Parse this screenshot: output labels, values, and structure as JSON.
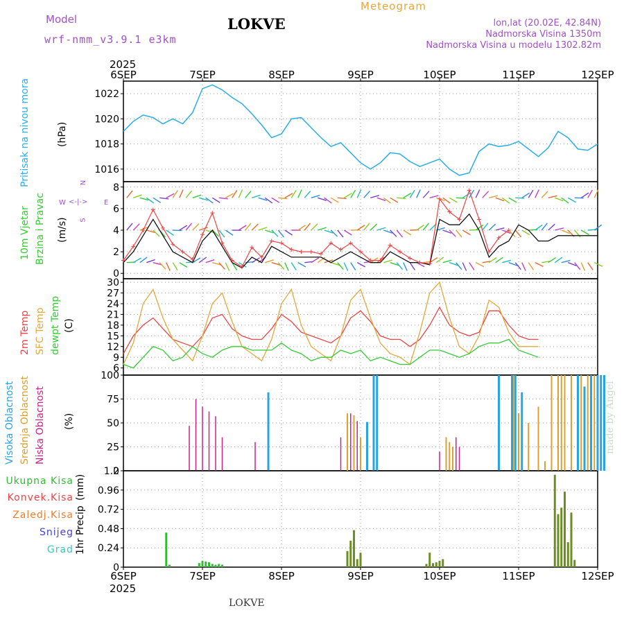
{
  "header": {
    "model_label": "Model",
    "model_name": "wrf-nmm_v3.9.1  e3km",
    "station": "LOKVE",
    "chart_title": "Meteogram",
    "lonlat": "lon,lat (20.02E, 42.84N)",
    "elevation": "Nadmorska Visina 1350m",
    "model_elevation": "Nadmorska Visina u modelu 1302.82m",
    "footer_station": "LOKVE",
    "watermark": "made by Angel",
    "year": "2025"
  },
  "colors": {
    "pressure": "#29aee8",
    "t2m": "#ee4444",
    "sfc": "#e3a83a",
    "dewpt": "#33cc33",
    "wind_obs": "#111111",
    "wind_gust": "#ee4444",
    "high_cloud": "#2ba3e0",
    "mid_cloud": "#dda030",
    "low_cloud": "#cc2288",
    "precip_total": "#33bb33",
    "precip_conv": "#ee4444",
    "snow": "#4444dd",
    "hail": "#33ccbb",
    "precip_stratiform": "#f07d2a"
  },
  "chart_data": {
    "type": "meteogram",
    "x_ticks": [
      "6SEP",
      "7SEP",
      "8SEP",
      "9SEP",
      "10SEP",
      "11SEP",
      "12SEP"
    ],
    "x_range_hours": [
      0,
      144
    ],
    "panels": [
      {
        "id": "pressure",
        "type": "line",
        "ylabels": [
          "Pritisak na nivou mora",
          "(hPa)"
        ],
        "ylim": [
          1015,
          1023
        ],
        "yticks": [
          1016,
          1018,
          1020,
          1022
        ],
        "step_hours": 3,
        "series": [
          {
            "name": "MSLP",
            "values": [
              1019.0,
              1019.8,
              1020.3,
              1020.1,
              1019.6,
              1020.0,
              1019.6,
              1020.5,
              1022.4,
              1022.7,
              1022.3,
              1021.7,
              1021.2,
              1020.4,
              1019.5,
              1018.5,
              1018.8,
              1020.0,
              1020.1,
              1019.3,
              1018.5,
              1017.8,
              1018.1,
              1017.3,
              1016.5,
              1016.0,
              1016.5,
              1017.3,
              1017.2,
              1016.6,
              1016.2,
              1016.5,
              1016.8,
              1016.0,
              1015.5,
              1015.7,
              1017.4,
              1018.0,
              1017.8,
              1017.9,
              1018.2,
              1017.6,
              1017.0,
              1017.7,
              1019.0,
              1018.5,
              1017.6,
              1017.5,
              1018.0
            ]
          }
        ]
      },
      {
        "id": "wind",
        "type": "line+barbs",
        "ylabels": [
          "10m Vjetar",
          "Brzina i Pravac",
          "(m/s)"
        ],
        "compass": {
          "n": "N",
          "s": "S",
          "e": "E",
          "w": "W"
        },
        "ylim": [
          -0.5,
          8.5
        ],
        "yticks": [
          0,
          2,
          4,
          6,
          8
        ],
        "step_hours": 3,
        "series": [
          {
            "name": "10m wind speed",
            "values": [
              1.0,
              2.0,
              3.5,
              5.0,
              3.5,
              2.0,
              1.5,
              1.0,
              3.0,
              4.0,
              2.5,
              1.0,
              0.5,
              1.5,
              1.0,
              2.5,
              2.0,
              1.5,
              1.5,
              1.5,
              1.5,
              1.0,
              1.5,
              2.0,
              1.5,
              1.0,
              1.0,
              2.0,
              1.5,
              1.0,
              1.0,
              0.8,
              5.0,
              4.5,
              4.5,
              5.5,
              4.0,
              1.5,
              2.5,
              3.0,
              4.5,
              4.0,
              3.0,
              3.0,
              3.5,
              3.5,
              3.5,
              3.5,
              3.5
            ]
          },
          {
            "name": "gust",
            "values": [
              1.2,
              2.5,
              4.0,
              5.9,
              4.2,
              2.7,
              2.0,
              1.3,
              3.6,
              5.6,
              2.8,
              1.2,
              0.6,
              2.4,
              1.5,
              3.0,
              2.8,
              2.2,
              2.0,
              2.0,
              1.8,
              2.8,
              2.2,
              2.8,
              2.0,
              1.2,
              1.2,
              2.6,
              2.0,
              1.4,
              1.0,
              0.9,
              6.9,
              5.7,
              5.0,
              7.7,
              5.0,
              2.0,
              3.3,
              4.0
            ]
          }
        ],
        "barb_rows": [
          1,
          4,
          7
        ]
      },
      {
        "id": "temperature",
        "type": "line",
        "ylabels": [
          "2m Temp",
          "SFC Temp",
          "dewpt Temp",
          "(C)"
        ],
        "ylim": [
          4,
          31
        ],
        "yticks": [
          6,
          9,
          12,
          15,
          18,
          21,
          24,
          27,
          30
        ],
        "step_hours": 3,
        "series": [
          {
            "name": "2m Temp",
            "values": [
              10,
              15,
              18,
              20,
              17,
              14,
              13,
              12,
              15,
              20,
              21,
              17,
              15,
              14,
              14,
              17,
              21,
              19,
              16,
              15,
              14,
              13,
              15,
              20,
              22,
              19,
              15,
              14,
              14,
              12,
              14,
              18,
              23,
              18,
              16,
              15,
              16,
              22,
              22,
              18,
              15,
              14,
              14
            ]
          },
          {
            "name": "SFC Temp",
            "values": [
              7,
              13,
              24,
              28,
              20,
              14,
              11,
              8,
              15,
              24,
              27,
              19,
              12,
              10,
              8,
              14,
              24,
              28,
              18,
              12,
              10,
              8,
              15,
              25,
              28,
              20,
              13,
              10,
              9,
              7,
              16,
              27,
              30,
              20,
              12,
              10,
              15,
              25,
              23,
              16,
              12,
              12,
              12
            ]
          },
          {
            "name": "dewpt Temp",
            "values": [
              7,
              6,
              9,
              12,
              11,
              8,
              9,
              12,
              10,
              9,
              11,
              12,
              12,
              11,
              11,
              11,
              13,
              11,
              10,
              8,
              9,
              9,
              11,
              10,
              11,
              8,
              9,
              8,
              7,
              7,
              9,
              11,
              11,
              10,
              9,
              10,
              12,
              13,
              13,
              14,
              11,
              10,
              9
            ]
          }
        ]
      },
      {
        "id": "clouds",
        "type": "bar",
        "ylabels": [
          "Visoka Oblacnost",
          "Srednja Oblacnost",
          "Niska Oblacnost",
          "(%)"
        ],
        "ylim": [
          0,
          100
        ],
        "yticks": [
          0,
          25,
          50,
          75,
          100
        ],
        "high": [
          [
            22,
            82
          ],
          [
            37,
            51
          ],
          [
            38,
            100
          ],
          [
            38.5,
            100
          ],
          [
            57,
            100
          ],
          [
            59,
            100
          ],
          [
            59.5,
            100
          ],
          [
            60.5,
            82
          ],
          [
            69,
            100
          ],
          [
            70,
            88
          ],
          [
            71,
            100
          ],
          [
            72,
            100
          ],
          [
            72.5,
            100
          ],
          [
            73,
            100
          ]
        ],
        "mid": [
          [
            34,
            60
          ],
          [
            35,
            58
          ],
          [
            36,
            35
          ],
          [
            49,
            35
          ],
          [
            49.5,
            30
          ],
          [
            50,
            25
          ],
          [
            59.2,
            100
          ],
          [
            60,
            60
          ],
          [
            61.5,
            50
          ],
          [
            63,
            67
          ],
          [
            64,
            10
          ],
          [
            65,
            100
          ],
          [
            66,
            100
          ],
          [
            66.5,
            100
          ],
          [
            67,
            100
          ],
          [
            68,
            100
          ],
          [
            69.5,
            100
          ],
          [
            70.5,
            100
          ],
          [
            71.5,
            100
          ]
        ],
        "low": [
          [
            10,
            47
          ],
          [
            11,
            75
          ],
          [
            12,
            67
          ],
          [
            13,
            62
          ],
          [
            14,
            57
          ],
          [
            15,
            35
          ],
          [
            20,
            30
          ],
          [
            33,
            35
          ],
          [
            34.5,
            60
          ],
          [
            35.5,
            52
          ],
          [
            48,
            20
          ],
          [
            50.5,
            35
          ],
          [
            51,
            25
          ]
        ]
      },
      {
        "id": "precip",
        "type": "bar",
        "ylabels": [
          "1hr Precip",
          "(mm)"
        ],
        "legend": [
          "Ukupna Kisa",
          "Konvek.Kisa",
          "Zaledj.Kisa",
          "Snijeg",
          "Grad"
        ],
        "ylim": [
          0,
          1.2
        ],
        "yticks": [
          0,
          0.24,
          0.48,
          0.72,
          0.96,
          1.2
        ],
        "bars": [
          [
            13,
            0.43
          ],
          [
            14,
            0.03
          ],
          [
            23,
            0.05
          ],
          [
            24,
            0.08
          ],
          [
            25,
            0.07
          ],
          [
            26,
            0.06
          ],
          [
            27,
            0.04
          ],
          [
            28,
            0.03
          ],
          [
            29,
            0.04
          ],
          [
            30,
            0.03
          ],
          [
            68,
            0.2
          ],
          [
            69,
            0.33
          ],
          [
            70,
            0.46
          ],
          [
            71,
            0.1
          ],
          [
            72,
            0.18
          ],
          [
            92,
            0.04
          ],
          [
            93,
            0.18
          ],
          [
            94,
            0.05
          ],
          [
            95,
            0.06
          ],
          [
            96,
            0.08
          ],
          [
            97,
            0.1
          ],
          [
            131,
            1.15
          ],
          [
            132,
            0.66
          ],
          [
            133,
            0.74
          ],
          [
            134,
            0.94
          ],
          [
            135,
            0.31
          ],
          [
            136,
            0.68
          ],
          [
            137,
            0.09
          ]
        ]
      }
    ]
  }
}
